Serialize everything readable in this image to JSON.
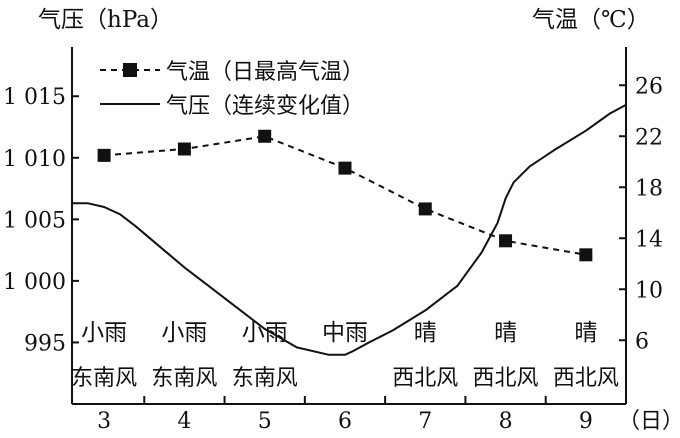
{
  "chart_data": {
    "type": "line",
    "left_axis": {
      "title": "气压（hPa）",
      "ylim": [
        990,
        1019
      ],
      "ticks": [
        995,
        1000,
        1005,
        1010,
        1015
      ],
      "tick_labels": [
        "995",
        "1 000",
        "1 005",
        "1 010",
        "1 015"
      ]
    },
    "right_axis": {
      "title": "气温（℃）",
      "ylim": [
        1,
        29
      ],
      "ticks": [
        6,
        10,
        14,
        18,
        22,
        26
      ],
      "tick_labels": [
        "6",
        "10",
        "14",
        "18",
        "22",
        "26"
      ]
    },
    "x_axis": {
      "unit": "（日）",
      "categories": [
        "3",
        "4",
        "5",
        "6",
        "7",
        "8",
        "9"
      ],
      "xlim": [
        2.6,
        9.5
      ]
    },
    "legend": [
      {
        "label": "气温（日最高气温）",
        "style": "dashed-square"
      },
      {
        "label": "气压（连续变化值）",
        "style": "solid"
      }
    ],
    "series": [
      {
        "name": "气温（日最高气温）",
        "axis": "right",
        "x": [
          3,
          4,
          5,
          6,
          7,
          8,
          9
        ],
        "values": [
          20.5,
          21,
          22,
          19.5,
          16.3,
          13.8,
          12.7
        ]
      },
      {
        "name": "气压（连续变化值）",
        "axis": "left",
        "x": [
          2.6,
          2.8,
          3.0,
          3.2,
          3.4,
          3.6,
          3.8,
          4.0,
          4.3,
          4.6,
          5.0,
          5.4,
          5.8,
          6.0,
          6.1,
          6.3,
          6.6,
          7.0,
          7.4,
          7.7,
          7.9,
          8.0,
          8.1,
          8.3,
          8.6,
          9.0,
          9.3,
          9.5
        ],
        "values": [
          1006.3,
          1006.3,
          1006.0,
          1005.4,
          1004.4,
          1003.3,
          1002.2,
          1001.1,
          999.6,
          998.1,
          996.1,
          994.6,
          994.0,
          994.0,
          994.3,
          995.0,
          996.0,
          997.6,
          999.6,
          1002.3,
          1004.7,
          1006.7,
          1008.0,
          1009.3,
          1010.6,
          1012.2,
          1013.6,
          1014.3
        ]
      }
    ],
    "weather": [
      {
        "day": "3",
        "weather": "小雨",
        "wind": "东南风"
      },
      {
        "day": "4",
        "weather": "小雨",
        "wind": "东南风"
      },
      {
        "day": "5",
        "weather": "小雨",
        "wind": "东南风"
      },
      {
        "day": "6",
        "weather": "中雨",
        "wind": ""
      },
      {
        "day": "7",
        "weather": "晴",
        "wind": "西北风"
      },
      {
        "day": "8",
        "weather": "晴",
        "wind": "西北风"
      },
      {
        "day": "9",
        "weather": "晴",
        "wind": "西北风"
      }
    ]
  }
}
